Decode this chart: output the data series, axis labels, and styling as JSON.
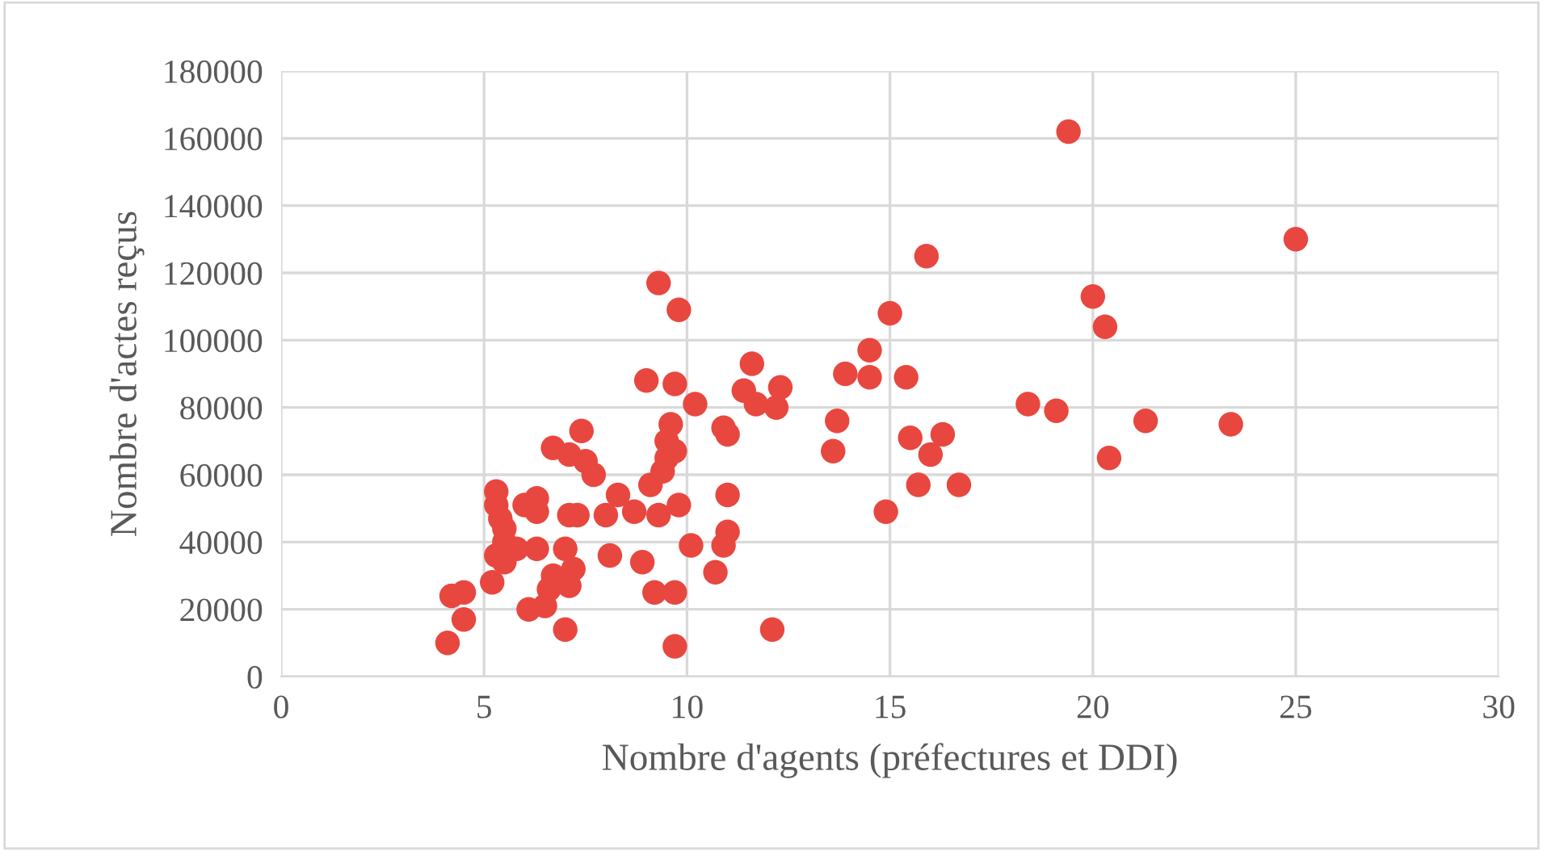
{
  "chart_data": {
    "type": "scatter",
    "xlabel": "Nombre d'agents (préfectures et DDI)",
    "ylabel": "Nombre d'actes reçus",
    "xlim": [
      0,
      30
    ],
    "ylim": [
      0,
      180000
    ],
    "xticks": [
      0,
      5,
      10,
      15,
      20,
      25,
      30
    ],
    "yticks": [
      0,
      20000,
      40000,
      60000,
      80000,
      100000,
      120000,
      140000,
      160000,
      180000
    ],
    "grid": true,
    "marker": "circle",
    "series": [
      {
        "color": "#e8473f",
        "x": [
          4.1,
          4.5,
          4.2,
          4.5,
          5.2,
          5.3,
          5.3,
          5.4,
          5.5,
          5.5,
          5.3,
          5.5,
          5.8,
          6.0,
          6.3,
          6.3,
          6.3,
          6.7,
          7.1,
          7.4,
          7.5,
          7.7,
          7.1,
          7.3,
          7.0,
          7.2,
          7.1,
          6.7,
          6.6,
          6.5,
          6.1,
          7.0,
          8.0,
          8.3,
          8.1,
          8.7,
          9.3,
          9.8,
          8.9,
          9.2,
          9.7,
          9.7,
          9.1,
          9.4,
          9.5,
          9.5,
          9.6,
          9.7,
          10.1,
          10.2,
          10.7,
          11.0,
          11.0,
          10.9,
          10.9,
          11.7,
          12.2,
          12.1,
          9.3,
          9.8,
          9.0,
          9.7,
          11.0,
          11.6,
          11.4,
          12.3,
          13.7,
          13.6,
          13.9,
          14.5,
          14.5,
          15.4,
          15.0,
          15.5,
          15.7,
          15.9,
          19.4,
          25.0,
          20.0,
          20.3,
          18.4,
          19.1,
          16.3,
          16.0,
          21.3,
          23.4,
          20.4,
          16.7,
          14.9
        ],
        "values": [
          10000,
          17000,
          24000,
          25000,
          28000,
          55000,
          51000,
          47000,
          44000,
          40000,
          36000,
          34000,
          38000,
          51000,
          53000,
          49000,
          38000,
          68000,
          66000,
          73000,
          64000,
          60000,
          48000,
          48000,
          38000,
          32000,
          27000,
          30000,
          26000,
          21000,
          20000,
          14000,
          48000,
          54000,
          36000,
          49000,
          48000,
          51000,
          34000,
          25000,
          25000,
          9000,
          57000,
          61000,
          65000,
          70000,
          75000,
          67000,
          39000,
          81000,
          31000,
          54000,
          43000,
          39000,
          74000,
          81000,
          80000,
          14000,
          117000,
          109000,
          88000,
          87000,
          72000,
          93000,
          85000,
          86000,
          76000,
          67000,
          90000,
          97000,
          89000,
          89000,
          108000,
          71000,
          57000,
          125000,
          162000,
          130000,
          113000,
          104000,
          81000,
          79000,
          72000,
          66000,
          76000,
          75000,
          65000,
          57000,
          49000
        ]
      }
    ]
  }
}
